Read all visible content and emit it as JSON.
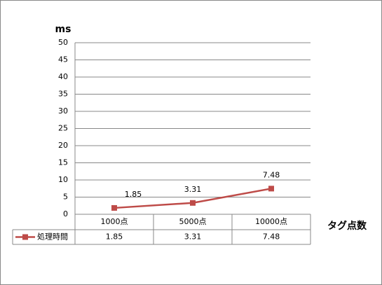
{
  "chart_data": {
    "type": "line",
    "y_label": "ms",
    "x_label": "タグ点数",
    "categories": [
      "1000点",
      "5000点",
      "10000点"
    ],
    "series": [
      {
        "name": "処理時間",
        "color": "#be4b48",
        "values": [
          1.85,
          3.31,
          7.48
        ]
      }
    ],
    "ylim": [
      0,
      50
    ],
    "yticks": [
      0,
      5,
      10,
      15,
      20,
      25,
      30,
      35,
      40,
      45,
      50
    ],
    "grid": true,
    "data_table": true
  }
}
